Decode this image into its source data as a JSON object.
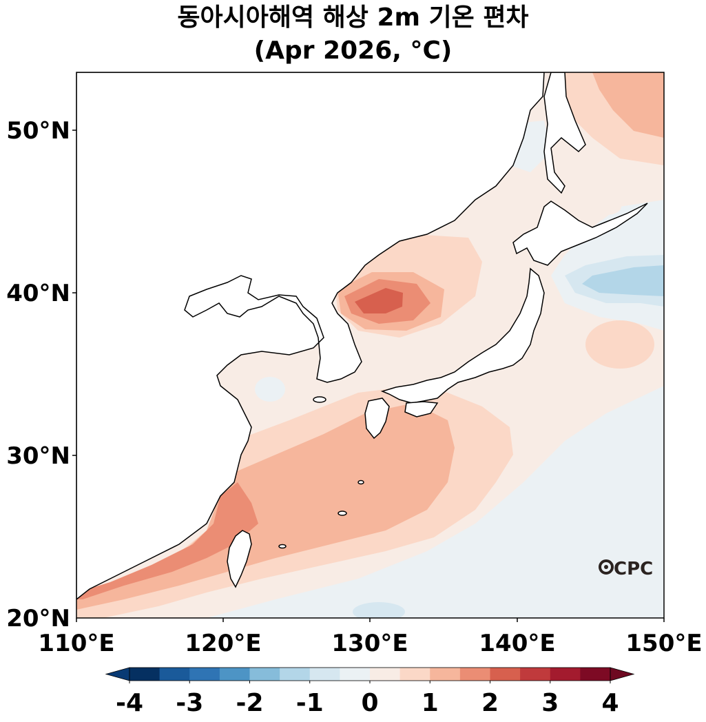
{
  "title": "동아시아해역 해상 2m 기온 편차",
  "subtitle": "(Apr 2026, °C)",
  "map": {
    "lon_range": [
      110,
      150
    ],
    "lat_range": [
      20,
      53.5
    ],
    "x_ticks": [
      "110°E",
      "120°E",
      "130°E",
      "140°E",
      "150°E"
    ],
    "y_ticks": [
      "50°N",
      "40°N",
      "30°N",
      "20°N"
    ],
    "logo_text": "CPC"
  },
  "colorbar": {
    "tick_labels": [
      "-4",
      "-3",
      "-2",
      "-1",
      "0",
      "1",
      "2",
      "3",
      "4"
    ],
    "colors": [
      "#053061",
      "#1a5a9a",
      "#2f74b4",
      "#4d94c5",
      "#86bcda",
      "#b3d6e8",
      "#d6e7f0",
      "#ebf1f4",
      "#f8ece5",
      "#fbd8c7",
      "#f6b69c",
      "#eb8d74",
      "#d7604e",
      "#c03a3c",
      "#a31b2e",
      "#7d0a24"
    ],
    "under_color": "#083a74",
    "over_color": "#6e0921"
  }
}
